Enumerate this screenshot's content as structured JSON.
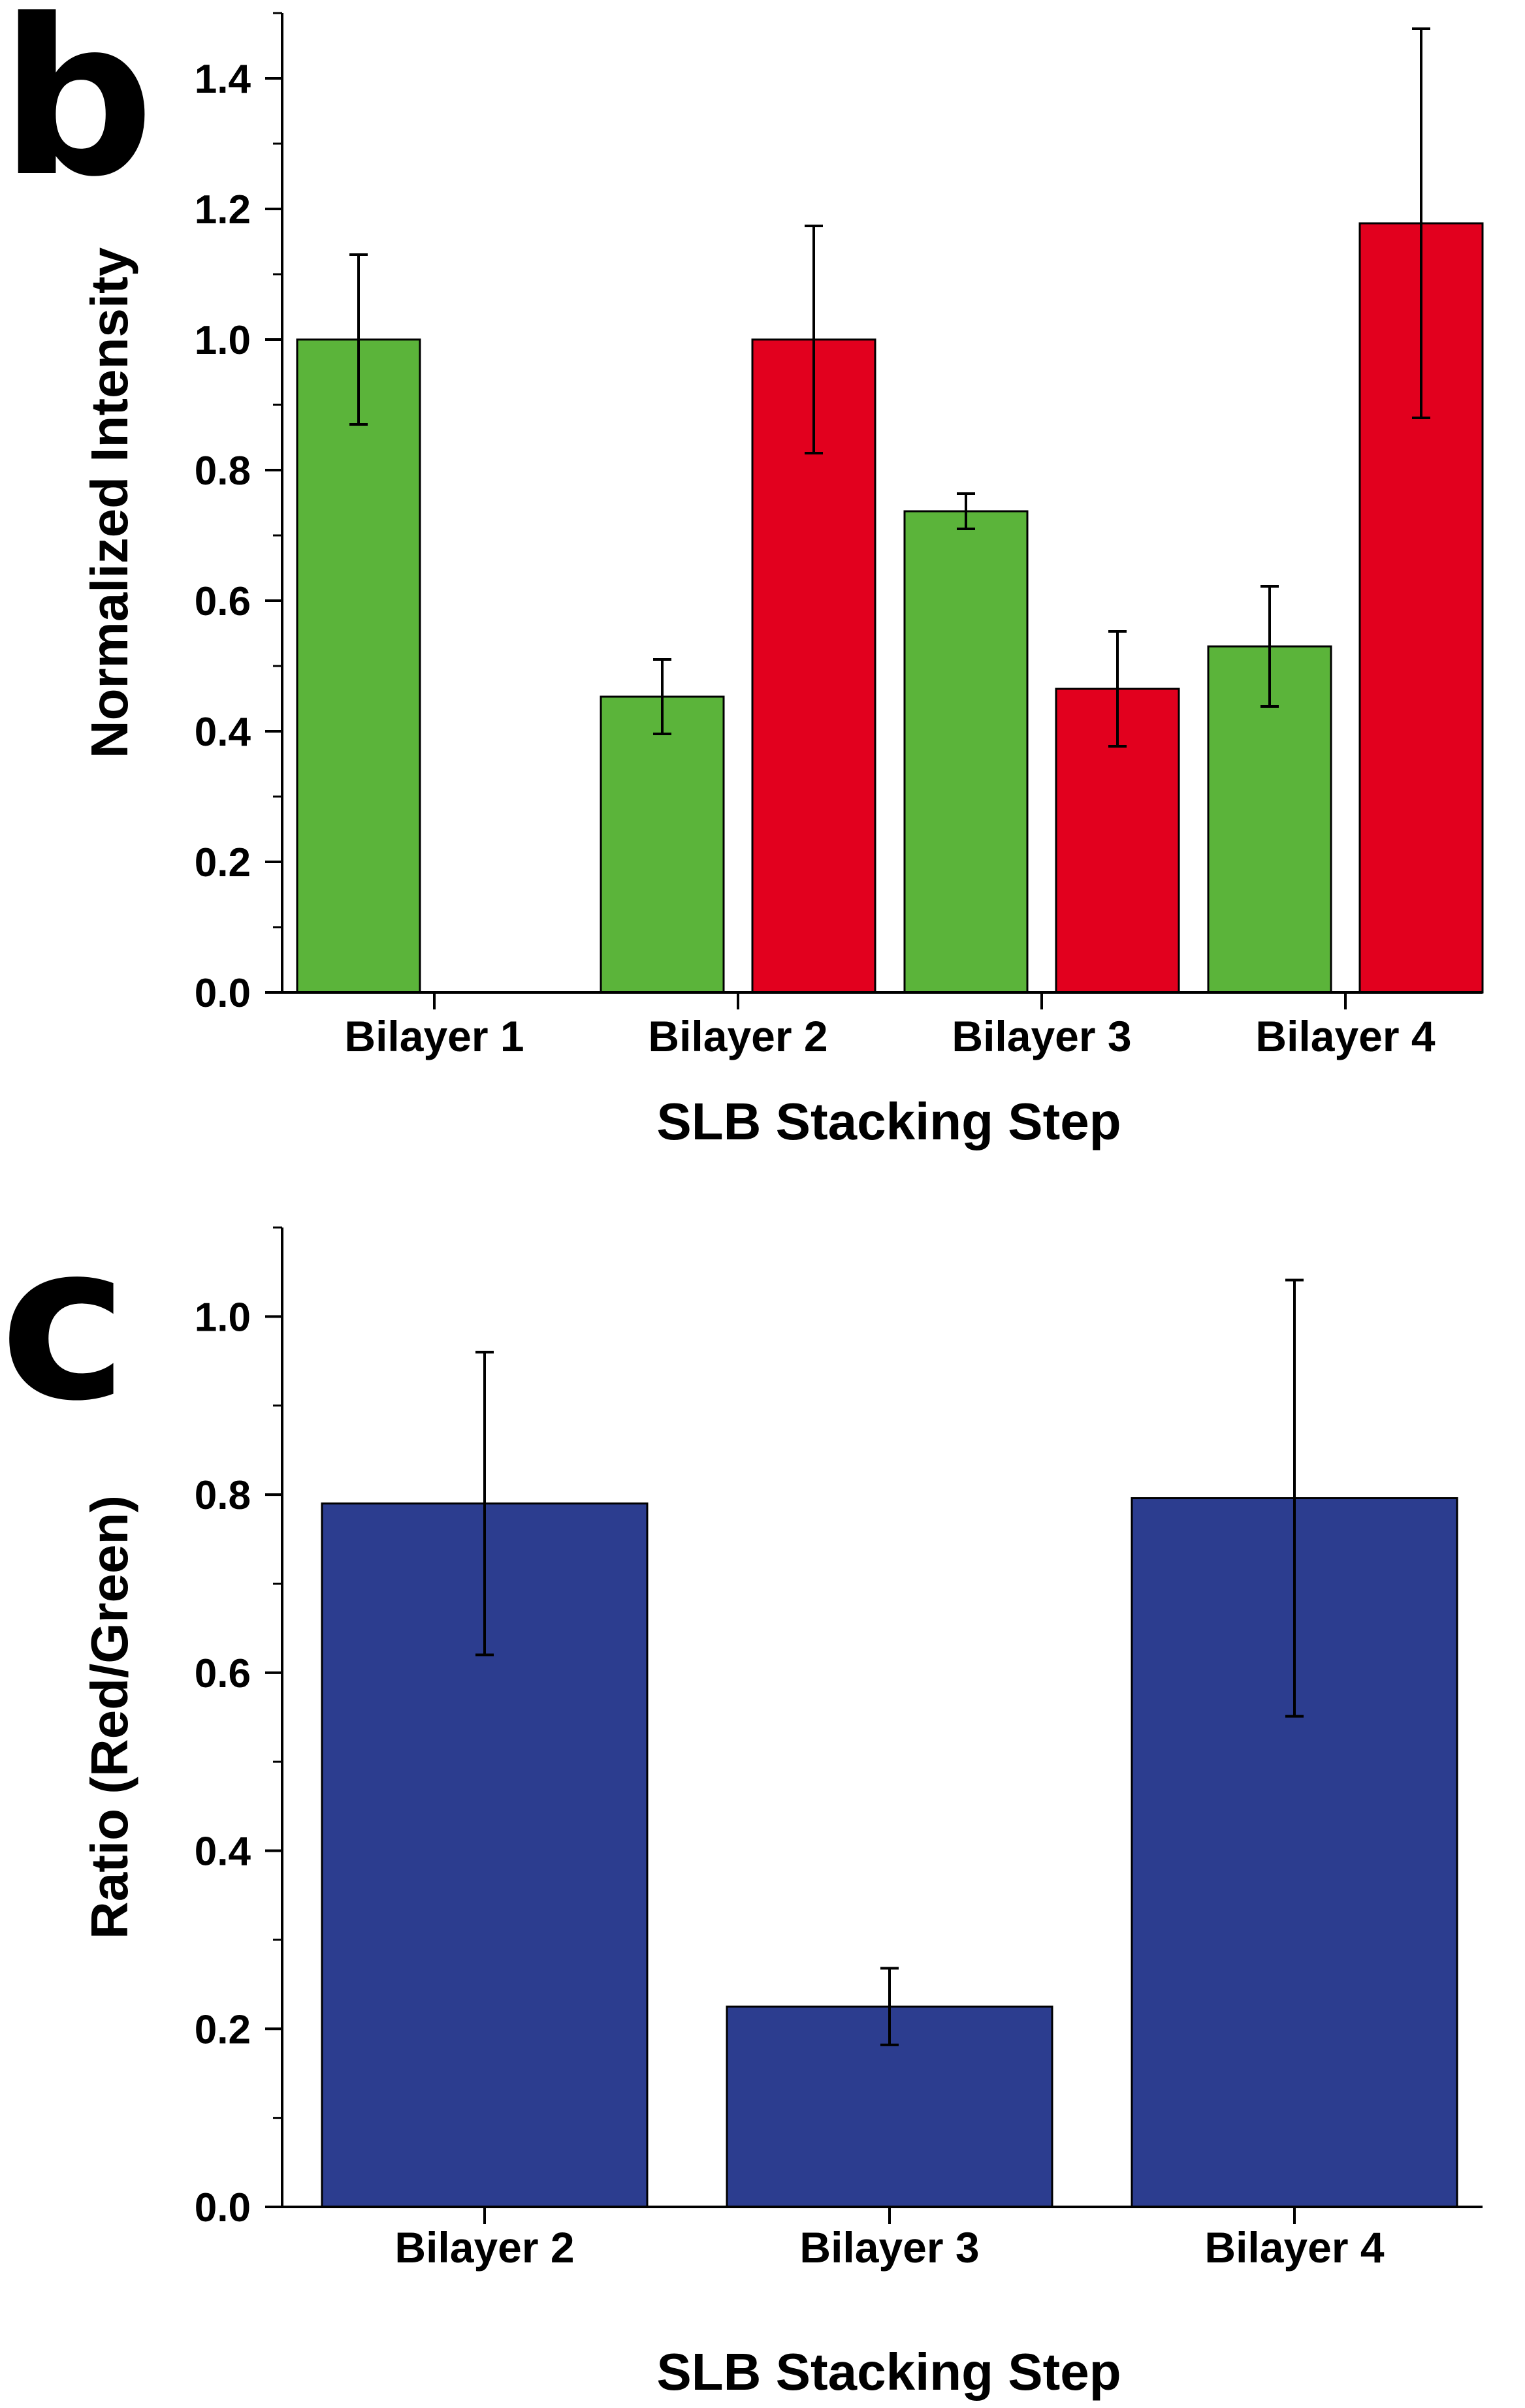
{
  "chart_data": [
    {
      "panel_label": "b",
      "type": "bar",
      "title": "",
      "xlabel": "SLB Stacking Step",
      "ylabel": "Normalized Intensity",
      "ylim": [
        0,
        1.5
      ],
      "yticks": [
        "0.0",
        "0.2",
        "0.4",
        "0.6",
        "0.8",
        "1.0",
        "1.2",
        "1.4"
      ],
      "categories": [
        "Bilayer 1",
        "Bilayer 2",
        "Bilayer 3",
        "Bilayer 4"
      ],
      "series": [
        {
          "name": "Green",
          "color": "#5bb43a",
          "values": [
            1.0,
            0.453,
            0.737,
            0.53
          ],
          "errors": [
            0.13,
            0.057,
            0.027,
            0.092
          ]
        },
        {
          "name": "Red",
          "color": "#e2001e",
          "values": [
            null,
            1.0,
            0.465,
            1.178
          ],
          "errors": [
            null,
            0.174,
            0.088,
            0.298
          ]
        }
      ],
      "grid": false,
      "legend": "none"
    },
    {
      "panel_label": "c",
      "type": "bar",
      "title": "",
      "xlabel": "SLB Stacking Step",
      "ylabel": "Ratio (Red/Green)",
      "ylim": [
        0,
        1.1
      ],
      "yticks": [
        "0.0",
        "0.2",
        "0.4",
        "0.6",
        "0.8",
        "1.0"
      ],
      "categories": [
        "Bilayer 2",
        "Bilayer 3",
        "Bilayer 4"
      ],
      "series": [
        {
          "name": "Ratio",
          "color": "#2c3d8f",
          "values": [
            0.79,
            0.225,
            0.796
          ],
          "errors": [
            0.17,
            0.043,
            0.245
          ]
        }
      ],
      "grid": false,
      "legend": "none"
    }
  ]
}
